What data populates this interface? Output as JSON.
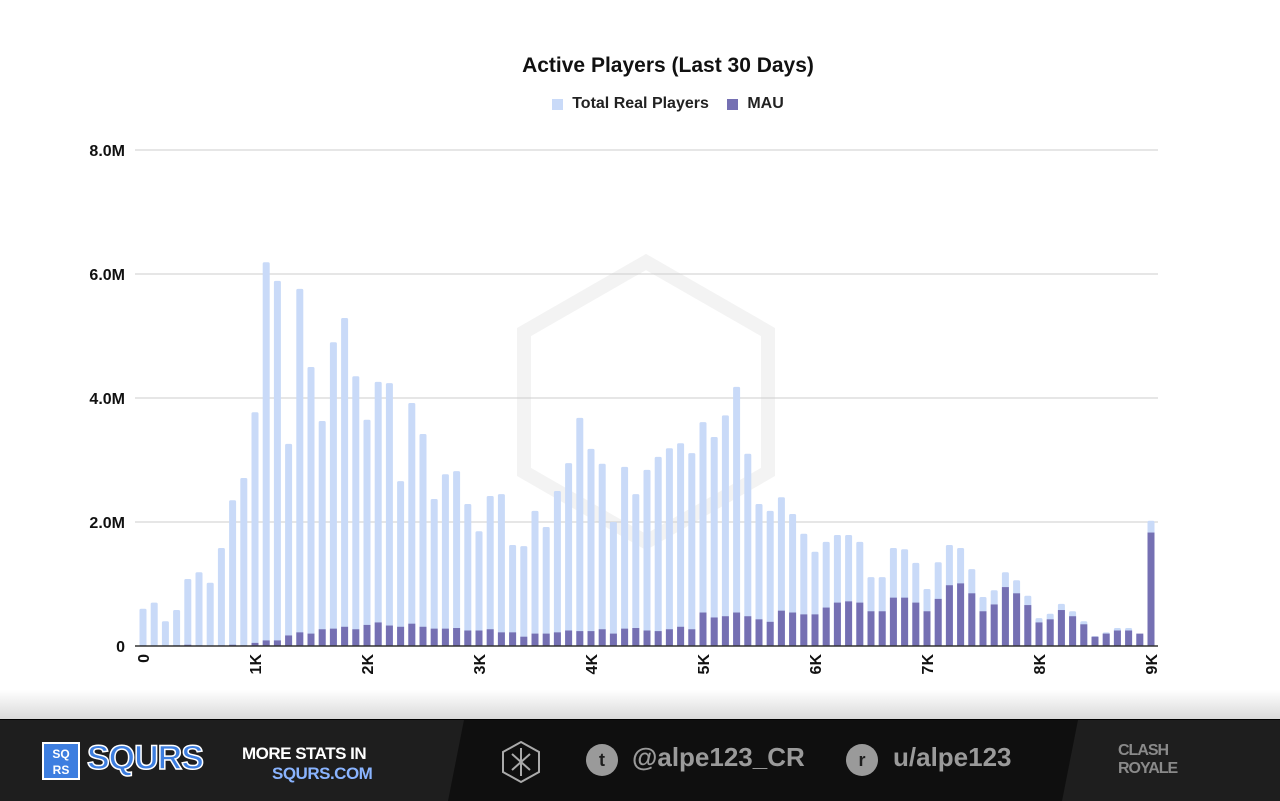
{
  "chart_data": {
    "type": "bar",
    "title": "Active Players (Last 30 Days)",
    "xlabel": "",
    "ylabel": "",
    "ylim": [
      0,
      8000000
    ],
    "yticks": [
      "0",
      "2.0M",
      "4.0M",
      "6.0M",
      "8.0M"
    ],
    "ytick_values": [
      0,
      2000000,
      4000000,
      6000000,
      8000000
    ],
    "xticks": [
      "0",
      "1K",
      "2K",
      "3K",
      "4K",
      "5K",
      "6K",
      "7K",
      "8K",
      "9K"
    ],
    "xtick_values": [
      0,
      1000,
      2000,
      3000,
      4000,
      5000,
      6000,
      7000,
      8000,
      9000
    ],
    "x_start": 0,
    "x_step": 100,
    "legend_position": "top",
    "series": [
      {
        "name": "Total Real Players",
        "color": "#c9daf8",
        "values_millions": [
          0.6,
          0.7,
          0.4,
          0.58,
          1.08,
          1.19,
          1.02,
          1.58,
          2.35,
          2.71,
          3.77,
          6.19,
          5.89,
          3.26,
          5.76,
          4.5,
          3.63,
          4.9,
          5.29,
          4.35,
          3.65,
          4.26,
          4.24,
          2.66,
          3.92,
          3.42,
          2.37,
          2.77,
          2.82,
          2.29,
          1.85,
          2.42,
          2.45,
          1.63,
          1.61,
          2.18,
          1.92,
          2.5,
          2.95,
          3.68,
          3.18,
          2.94,
          2.0,
          2.89,
          2.45,
          2.84,
          3.05,
          3.19,
          3.27,
          3.11,
          3.61,
          3.37,
          3.72,
          4.18,
          3.1,
          2.29,
          2.18,
          2.4,
          2.13,
          1.81,
          1.52,
          1.68,
          1.79,
          1.79,
          1.68,
          1.11,
          1.11,
          1.58,
          1.56,
          1.34,
          0.92,
          1.35,
          1.63,
          1.58,
          1.24,
          0.79,
          0.9,
          1.19,
          1.06,
          0.81,
          0.45,
          0.52,
          0.68,
          0.56,
          0.4,
          0.16,
          0.22,
          0.29,
          0.29,
          0.19,
          2.02
        ]
      },
      {
        "name": "MAU",
        "color": "#7570b3",
        "values_millions": [
          0.01,
          0.005,
          0,
          0.01,
          0.02,
          0.01,
          0,
          0.01,
          0.02,
          0.01,
          0.05,
          0.09,
          0.09,
          0.17,
          0.22,
          0.2,
          0.27,
          0.28,
          0.31,
          0.27,
          0.34,
          0.38,
          0.33,
          0.31,
          0.36,
          0.31,
          0.28,
          0.28,
          0.29,
          0.25,
          0.25,
          0.27,
          0.22,
          0.22,
          0.15,
          0.2,
          0.2,
          0.22,
          0.25,
          0.24,
          0.24,
          0.27,
          0.2,
          0.28,
          0.29,
          0.25,
          0.24,
          0.27,
          0.31,
          0.27,
          0.54,
          0.46,
          0.48,
          0.54,
          0.48,
          0.43,
          0.39,
          0.57,
          0.54,
          0.51,
          0.51,
          0.62,
          0.7,
          0.72,
          0.7,
          0.56,
          0.56,
          0.78,
          0.78,
          0.7,
          0.56,
          0.76,
          0.98,
          1.01,
          0.85,
          0.56,
          0.67,
          0.95,
          0.85,
          0.66,
          0.38,
          0.43,
          0.58,
          0.48,
          0.35,
          0.15,
          0.2,
          0.25,
          0.25,
          0.2,
          1.83
        ]
      }
    ]
  },
  "footer": {
    "brand": "SQURS",
    "brand_icon_letters": "SQ RS",
    "more_stats": "MORE STATS IN",
    "url": "SQURS.COM",
    "twitter": "@alpe123_CR",
    "reddit": "u/alpe123",
    "game_logo": "CLASH ROYALE"
  }
}
